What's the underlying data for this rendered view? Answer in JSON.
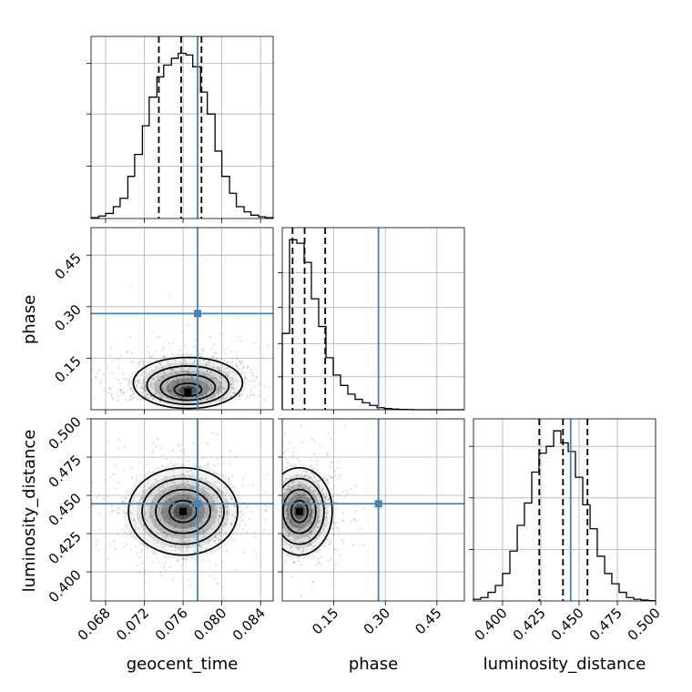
{
  "chart_data": {
    "type": "corner",
    "parameters": [
      "geocent_time",
      "phase",
      "luminosity_distance"
    ],
    "truths": {
      "geocent_time": 0.0775,
      "phase": 0.28,
      "luminosity_distance": 0.4445
    },
    "truth_color": "#4682b4",
    "grid": true,
    "axes": {
      "geocent_time": {
        "range": [
          0.0665,
          0.0853
        ],
        "ticks": [
          0.068,
          0.072,
          0.076,
          0.08,
          0.084
        ],
        "tick_labels": [
          "0.068",
          "0.072",
          "0.076",
          "0.080",
          "0.084"
        ]
      },
      "phase": {
        "range": [
          0.0,
          0.53
        ],
        "ticks": [
          0.15,
          0.3,
          0.45
        ],
        "tick_labels": [
          "0.15",
          "0.30",
          "0.45"
        ]
      },
      "luminosity_distance": {
        "range": [
          0.381,
          0.5
        ],
        "ticks": [
          0.4,
          0.425,
          0.45,
          0.475,
          0.5
        ],
        "tick_labels": [
          "0.400",
          "0.425",
          "0.450",
          "0.475",
          "0.500"
        ]
      }
    },
    "histograms": [
      {
        "parameter": "geocent_time",
        "bin_edges": [
          0.0665,
          0.0673,
          0.068,
          0.0688,
          0.0695,
          0.0703,
          0.071,
          0.0718,
          0.0725,
          0.0733,
          0.074,
          0.0748,
          0.0755,
          0.0763,
          0.077,
          0.0778,
          0.0785,
          0.0793,
          0.08,
          0.0808,
          0.0815,
          0.0823,
          0.083,
          0.0838,
          0.0845,
          0.0853
        ],
        "counts": [
          0.005,
          0.015,
          0.03,
          0.07,
          0.12,
          0.25,
          0.38,
          0.55,
          0.72,
          0.84,
          0.91,
          0.95,
          0.98,
          0.97,
          0.9,
          0.75,
          0.62,
          0.4,
          0.25,
          0.15,
          0.07,
          0.04,
          0.02,
          0.01,
          0.005
        ],
        "quantiles": [
          0.0735,
          0.0758,
          0.0779
        ],
        "ylim": [
          0,
          1.08
        ],
        "yticks": [
          0.31,
          0.62,
          0.92
        ]
      },
      {
        "parameter": "phase",
        "bin_edges": [
          0.0,
          0.0212,
          0.0424,
          0.0636,
          0.0848,
          0.106,
          0.1272,
          0.1484,
          0.1696,
          0.1908,
          0.212,
          0.2332,
          0.2544,
          0.2756,
          0.2968,
          0.318,
          0.3392,
          0.3604,
          0.3816,
          0.4028,
          0.424,
          0.4452,
          0.4664,
          0.4876,
          0.5088,
          0.53
        ],
        "counts": [
          0.44,
          0.98,
          0.96,
          0.85,
          0.64,
          0.48,
          0.3,
          0.2,
          0.14,
          0.09,
          0.06,
          0.04,
          0.025,
          0.012,
          0.007,
          0.004,
          0.002,
          0.001,
          0,
          0,
          0,
          0,
          0,
          0,
          0
        ],
        "quantiles": [
          0.03,
          0.065,
          0.125
        ],
        "ylim": [
          0,
          1.05
        ],
        "yticks": [
          0.19,
          0.38,
          0.59,
          0.79
        ]
      },
      {
        "parameter": "luminosity_distance",
        "bin_edges": [
          0.381,
          0.3858,
          0.3905,
          0.3953,
          0.4,
          0.4048,
          0.4096,
          0.4143,
          0.4191,
          0.4238,
          0.4286,
          0.4334,
          0.4381,
          0.4429,
          0.4476,
          0.4524,
          0.4572,
          0.4619,
          0.4667,
          0.4714,
          0.4762,
          0.481,
          0.4857,
          0.4905,
          0.4952,
          0.5
        ],
        "counts": [
          0.01,
          0.02,
          0.05,
          0.09,
          0.16,
          0.29,
          0.44,
          0.57,
          0.75,
          0.86,
          0.9,
          0.99,
          0.92,
          0.87,
          0.72,
          0.56,
          0.42,
          0.26,
          0.16,
          0.1,
          0.05,
          0.02,
          0.01,
          0.005,
          0.002
        ],
        "quantiles": [
          0.424,
          0.4395,
          0.4555
        ],
        "ylim": [
          0,
          1.06
        ],
        "yticks": [
          0.3,
          0.6,
          0.9
        ]
      }
    ],
    "joint_2d": [
      {
        "x": "geocent_time",
        "y": "phase",
        "mode": [
          0.0765,
          0.052
        ],
        "contour_levels": [
          0.5,
          1.0,
          1.5,
          2.0
        ]
      },
      {
        "x": "geocent_time",
        "y": "luminosity_distance",
        "mode": [
          0.076,
          0.4395
        ],
        "contour_levels": [
          0.5,
          1.0,
          1.5,
          2.0
        ]
      },
      {
        "x": "phase",
        "y": "luminosity_distance",
        "mode": [
          0.05,
          0.4395
        ],
        "contour_levels": [
          0.5,
          1.0,
          1.5,
          2.0
        ]
      }
    ]
  }
}
